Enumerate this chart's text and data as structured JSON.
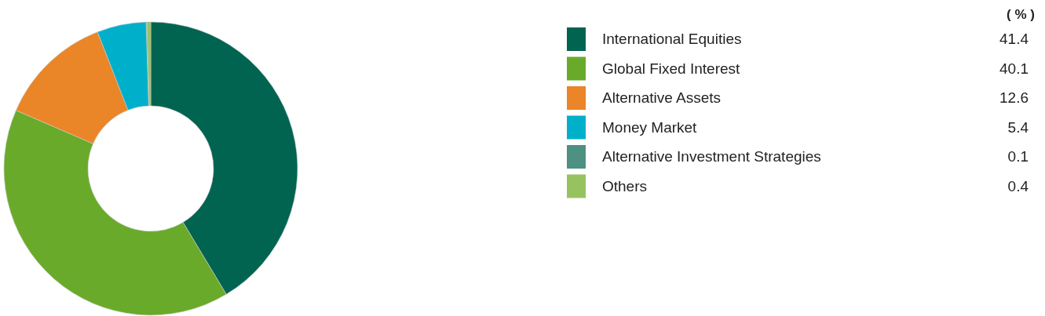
{
  "chart_data": {
    "type": "donut",
    "legend_title": "( % )",
    "legend": "right",
    "data_labels": true,
    "categories": [
      "International Equities",
      "Global Fixed Interest",
      "Alternative Assets",
      "Money Market",
      "Alternative Investment Strategies",
      "Others"
    ],
    "values": [
      41.4,
      40.1,
      12.6,
      5.4,
      0.1,
      0.4
    ],
    "colors": [
      "#006450",
      "#6aaa2a",
      "#ea8528",
      "#00b0ca",
      "#4e9081",
      "#96c35f"
    ]
  }
}
